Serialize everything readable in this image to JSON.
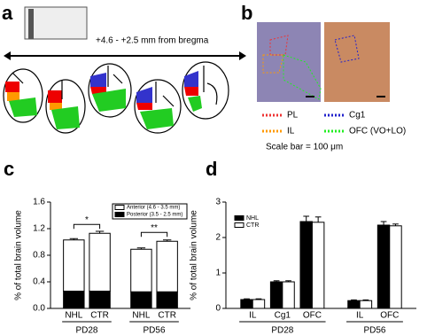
{
  "panel_a": {
    "label": "a",
    "caption": "+4.6 - +2.5 mm from bregma"
  },
  "panel_b": {
    "label": "b",
    "legend": [
      "PL",
      "Cg1",
      "IL",
      "OFC (VO+LO)"
    ],
    "scale_note": "Scale bar = 100 μm"
  },
  "panel_labels": [
    "c",
    "d"
  ],
  "chart_data": [
    {
      "type": "stacked_bar",
      "ylabel": "% of total brain volume",
      "groups": [
        {
          "label": "PD28",
          "categories": [
            "NHL",
            "CTR"
          ]
        },
        {
          "label": "PD56",
          "categories": [
            "NHL",
            "CTR"
          ]
        }
      ],
      "series": [
        {
          "name": "Posterior (3.5 - 2.5 mm)",
          "color": "#000000",
          "values": [
            0.26,
            0.26,
            0.25,
            0.25
          ]
        },
        {
          "name": "Anterior (4.6 - 3.5 mm)",
          "color": "#ffffff",
          "values": [
            0.77,
            0.87,
            0.64,
            0.76
          ],
          "errors": [
            0.02,
            0.03,
            0.02,
            0.02
          ]
        }
      ],
      "annotations": [
        "*",
        "**"
      ],
      "ylim": [
        0,
        1.6
      ],
      "yticks": [
        {
          "value": 0,
          "label": "0.0"
        },
        0.4,
        0.8,
        1.2,
        1.6
      ]
    },
    {
      "type": "grouped_bar",
      "ylabel": "% of total brain volume",
      "groups": [
        {
          "label": "PD28",
          "categories": [
            "IL",
            "Cg1",
            "OFC"
          ]
        },
        {
          "label": "PD56",
          "categories": [
            "IL",
            "OFC"
          ]
        }
      ],
      "series": [
        {
          "name": "NHL",
          "color": "#000000",
          "values": [
            0.25,
            0.75,
            2.45,
            0.22,
            2.35
          ],
          "errors": [
            0.02,
            0.03,
            0.15,
            0.02,
            0.1
          ]
        },
        {
          "name": "CTR",
          "color": "#ffffff",
          "values": [
            0.25,
            0.75,
            2.43,
            0.22,
            2.33
          ],
          "errors": [
            0.02,
            0.03,
            0.15,
            0.02,
            0.05
          ]
        }
      ],
      "ylim": [
        0,
        3
      ],
      "yticks": [
        0,
        1,
        2,
        3
      ]
    }
  ]
}
